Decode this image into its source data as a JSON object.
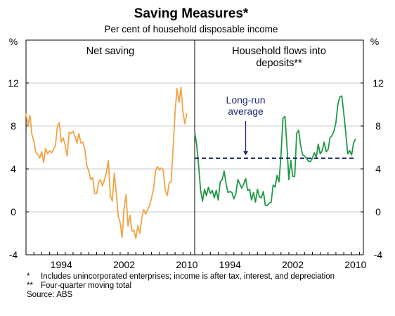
{
  "chart_data": {
    "title": "Saving Measures*",
    "subtitle": "Per cent of household disposable income",
    "y_unit_label": "%",
    "ylim": [
      -4,
      16
    ],
    "yticks": [
      -4,
      0,
      4,
      8,
      12
    ],
    "ytick_labels": [
      "-4",
      "0",
      "4",
      "8",
      "12"
    ],
    "grid": true,
    "panels": [
      {
        "title_lines": [
          "Net saving"
        ],
        "type": "line",
        "color": "#f2a444",
        "xlim": [
          1990,
          2011.5
        ],
        "xticks": [
          1994,
          2002,
          2010
        ],
        "xtick_labels": [
          "1994",
          "2002",
          "2010"
        ],
        "series": [
          {
            "x": [
              1990.0,
              1990.25,
              1990.5,
              1990.75,
              1991.0,
              1991.25,
              1991.5,
              1991.75,
              1992.0,
              1992.25,
              1992.5,
              1992.75,
              1993.0,
              1993.25,
              1993.5,
              1993.75,
              1994.0,
              1994.25,
              1994.5,
              1994.75,
              1995.0,
              1995.25,
              1995.5,
              1995.75,
              1996.0,
              1996.25,
              1996.5,
              1996.75,
              1997.0,
              1997.25,
              1997.5,
              1997.75,
              1998.0,
              1998.25,
              1998.5,
              1998.75,
              1999.0,
              1999.25,
              1999.5,
              1999.75,
              2000.0,
              2000.25,
              2000.5,
              2000.75,
              2001.0,
              2001.25,
              2001.5,
              2001.75,
              2002.0,
              2002.25,
              2002.5,
              2002.75,
              2003.0,
              2003.25,
              2003.5,
              2003.75,
              2004.0,
              2004.25,
              2004.5,
              2004.75,
              2005.0,
              2005.25,
              2005.5,
              2005.75,
              2006.0,
              2006.25,
              2006.5,
              2006.75,
              2007.0,
              2007.25,
              2007.5,
              2007.75,
              2008.0,
              2008.25,
              2008.5,
              2008.75,
              2009.0,
              2009.25,
              2009.5,
              2009.75,
              2010.0,
              2010.25,
              2010.5
            ],
            "values": [
              9.2,
              8.0,
              9.0,
              7.2,
              6.6,
              5.5,
              5.4,
              5.0,
              5.6,
              4.6,
              5.9,
              5.4,
              5.7,
              5.5,
              5.8,
              6.2,
              8.0,
              8.3,
              6.5,
              6.9,
              6.2,
              5.2,
              7.4,
              7.3,
              7.5,
              7.0,
              6.4,
              7.3,
              6.4,
              6.5,
              5.8,
              4.3,
              3.8,
              3.0,
              3.2,
              1.7,
              1.7,
              2.8,
              3.0,
              2.4,
              3.0,
              3.7,
              4.8,
              1.5,
              1.0,
              3.6,
              1.8,
              -0.4,
              -1.0,
              -2.4,
              0.3,
              1.6,
              -1.3,
              -0.3,
              -1.8,
              -1.7,
              -2.5,
              -1.3,
              -2.0,
              -0.6,
              0.2,
              -0.2,
              0.2,
              0.6,
              1.3,
              2.1,
              3.8,
              4.2,
              3.9,
              4.1,
              3.9,
              2.0,
              1.5,
              2.7,
              2.8,
              6.0,
              9.3,
              11.5,
              10.2,
              11.6,
              9.3,
              8.2,
              9.2
            ]
          }
        ]
      },
      {
        "title_lines": [
          "Household flows into",
          "deposits**"
        ],
        "type": "line",
        "color": "#1f9945",
        "xlim": [
          1990,
          2011.5
        ],
        "xticks": [
          1994,
          2002,
          2010
        ],
        "xtick_labels": [
          "1994",
          "2002",
          "2010"
        ],
        "series": [
          {
            "x": [
              1990.0,
              1990.25,
              1990.5,
              1990.75,
              1991.0,
              1991.25,
              1991.5,
              1991.75,
              1992.0,
              1992.25,
              1992.5,
              1992.75,
              1993.0,
              1993.25,
              1993.5,
              1993.75,
              1994.0,
              1994.25,
              1994.5,
              1994.75,
              1995.0,
              1995.25,
              1995.5,
              1995.75,
              1996.0,
              1996.25,
              1996.5,
              1996.75,
              1997.0,
              1997.25,
              1997.5,
              1997.75,
              1998.0,
              1998.25,
              1998.5,
              1998.75,
              1999.0,
              1999.25,
              1999.5,
              1999.75,
              2000.0,
              2000.25,
              2000.5,
              2000.75,
              2001.0,
              2001.25,
              2001.5,
              2001.75,
              2002.0,
              2002.25,
              2002.5,
              2002.75,
              2003.0,
              2003.25,
              2003.5,
              2003.75,
              2004.0,
              2004.25,
              2004.5,
              2004.75,
              2005.0,
              2005.25,
              2005.5,
              2005.75,
              2006.0,
              2006.25,
              2006.5,
              2006.75,
              2007.0,
              2007.25,
              2007.5,
              2007.75,
              2008.0,
              2008.25,
              2008.5,
              2008.75,
              2009.0,
              2009.25,
              2009.5,
              2009.75,
              2010.0,
              2010.25,
              2010.5
            ],
            "values": [
              7.4,
              6.3,
              4.3,
              2.0,
              1.0,
              2.1,
              1.5,
              2.3,
              1.7,
              2.0,
              1.3,
              2.0,
              1.1,
              2.8,
              3.0,
              3.8,
              2.6,
              1.8,
              1.9,
              1.8,
              1.2,
              1.7,
              3.0,
              2.6,
              2.2,
              2.6,
              3.1,
              2.0,
              2.1,
              1.1,
              1.8,
              0.9,
              2.1,
              1.4,
              1.3,
              1.9,
              0.6,
              0.6,
              0.8,
              0.9,
              2.5,
              2.3,
              3.4,
              2.8,
              5.3,
              8.7,
              8.9,
              6.2,
              3.0,
              4.8,
              3.3,
              3.3,
              7.3,
              7.6,
              6.2,
              5.3,
              5.2,
              5.0,
              4.7,
              4.7,
              5.0,
              5.5,
              5.1,
              6.3,
              5.4,
              5.7,
              6.5,
              5.6,
              5.8,
              6.9,
              7.1,
              7.5,
              8.3,
              10.0,
              10.7,
              10.8,
              9.2,
              7.4,
              5.4,
              5.7,
              5.3,
              6.4,
              6.8
            ]
          },
          {
            "name": "Long-run average",
            "style": "dashed",
            "color": "#1c2870",
            "x": [
              1990.0,
              2010.5
            ],
            "values": [
              5.0,
              5.0
            ]
          }
        ],
        "annotations": [
          {
            "lines": [
              "Long-run",
              "average"
            ],
            "color": "#1c2870",
            "arrow_to": [
              1996.5,
              5.2
            ]
          }
        ]
      }
    ]
  },
  "footnotes": [
    {
      "mark": "*",
      "text": "Includes unincorporated enterprises; income is after tax, interest, and depreciation"
    },
    {
      "mark": "**",
      "text": "Four-quarter moving total"
    }
  ],
  "source": "Source: ABS"
}
